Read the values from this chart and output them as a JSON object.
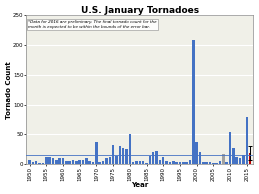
{
  "title": "U.S. January Tornadoes",
  "xlabel": "Year",
  "ylabel": "Tornado Count",
  "annotation": "*Data for 2016 are preliminary. The final tornado count for the\nmonth is expected to be within the bounds of the error bar.",
  "ylim": [
    0,
    250
  ],
  "yticks": [
    0,
    50,
    100,
    150,
    200,
    250
  ],
  "years": [
    1950,
    1951,
    1952,
    1953,
    1954,
    1955,
    1956,
    1957,
    1958,
    1959,
    1960,
    1961,
    1962,
    1963,
    1964,
    1965,
    1966,
    1967,
    1968,
    1969,
    1970,
    1971,
    1972,
    1973,
    1974,
    1975,
    1976,
    1977,
    1978,
    1979,
    1980,
    1981,
    1982,
    1983,
    1984,
    1985,
    1986,
    1987,
    1988,
    1989,
    1990,
    1991,
    1992,
    1993,
    1994,
    1995,
    1996,
    1997,
    1998,
    1999,
    2000,
    2001,
    2002,
    2003,
    2004,
    2005,
    2006,
    2007,
    2008,
    2009,
    2010,
    2011,
    2012,
    2013,
    2014,
    2015,
    2016
  ],
  "values": [
    7,
    3,
    5,
    2,
    2,
    12,
    13,
    10,
    8,
    10,
    10,
    5,
    6,
    8,
    6,
    8,
    8,
    11,
    5,
    4,
    38,
    3,
    5,
    10,
    13,
    32,
    14,
    31,
    28,
    26,
    50,
    3,
    5,
    6,
    5,
    2,
    14,
    20,
    23,
    8,
    12,
    5,
    3,
    5,
    3,
    4,
    3,
    4,
    8,
    208,
    37,
    20,
    3,
    3,
    3,
    2,
    2,
    5,
    17,
    3,
    55,
    27,
    13,
    10,
    15,
    80,
    19
  ],
  "gray_years": [
    2008
  ],
  "red_years": [
    2016
  ],
  "error_bar_year": 2016,
  "error_bar_value": 19,
  "error_bar_yerr": 12,
  "title_fontsize": 6.5,
  "label_fontsize": 5.0,
  "tick_fontsize": 4.0,
  "annotation_fontsize": 3.0,
  "plot_bg_color": "#f0f0e8",
  "bar_color_normal": "#4472C4",
  "bar_color_gray": "#a0a0a0",
  "bar_color_red": "#C00000",
  "grid_color": "#ffffff",
  "mean_color": "#4472C4",
  "mean_linewidth": 0.6
}
